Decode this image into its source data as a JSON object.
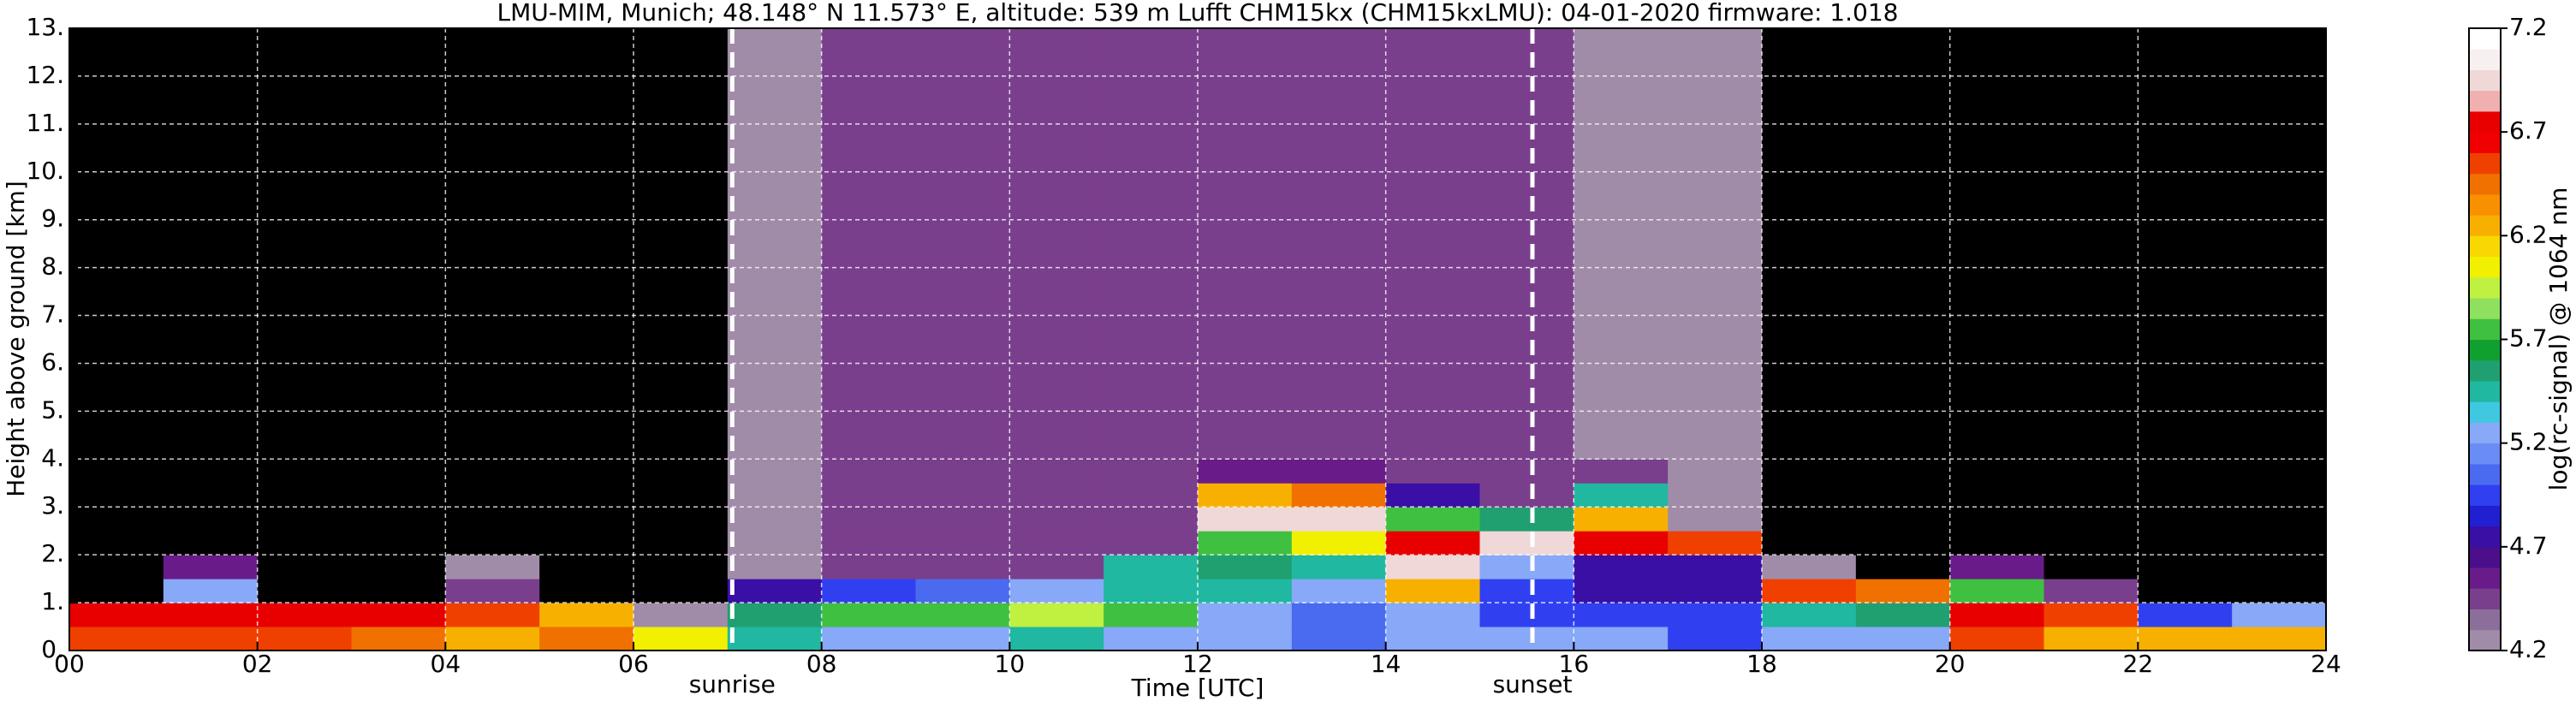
{
  "chart_data": {
    "type": "heatmap",
    "title": "LMU-MIM, Munich; 48.148° N 11.573° E, altitude: 539 m    Lufft CHM15kx (CHM15kxLMU): 04-01-2020    firmware: 1.018",
    "xlabel": "Time [UTC]",
    "ylabel": "Height above ground [km]",
    "xlim": [
      0,
      24
    ],
    "ylim": [
      0,
      13
    ],
    "xticks": [
      {
        "value": 0,
        "label": "00"
      },
      {
        "value": 2,
        "label": "02"
      },
      {
        "value": 4,
        "label": "04"
      },
      {
        "value": 6,
        "label": "06"
      },
      {
        "value": 8,
        "label": "08"
      },
      10,
      12,
      14,
      16,
      18,
      20,
      22,
      24
    ],
    "yticks": [
      {
        "value": 0,
        "label": "0."
      },
      {
        "value": 1,
        "label": "1."
      },
      {
        "value": 2,
        "label": "2."
      },
      {
        "value": 3,
        "label": "3."
      },
      {
        "value": 4,
        "label": "4."
      },
      {
        "value": 5,
        "label": "5."
      },
      {
        "value": 6,
        "label": "6."
      },
      {
        "value": 7,
        "label": "7."
      },
      {
        "value": 8,
        "label": "8."
      },
      {
        "value": 9,
        "label": "9."
      },
      {
        "value": 10,
        "label": "10."
      },
      {
        "value": 11,
        "label": "11."
      },
      {
        "value": 12,
        "label": "12."
      },
      {
        "value": 13,
        "label": "13."
      }
    ],
    "grid": true,
    "xbins": [
      0,
      1,
      2,
      3,
      4,
      5,
      6,
      7,
      8,
      9,
      10,
      11,
      12,
      13,
      14,
      15,
      16,
      17,
      18,
      19,
      20,
      21,
      22,
      23,
      24
    ],
    "ybins": [
      0,
      0.5,
      1,
      1.5,
      2,
      2.5,
      3,
      3.5,
      4,
      13
    ],
    "values": [
      [
        6.5,
        6.8,
        4.1,
        4.0,
        4.0,
        4.0,
        4.0,
        4.0,
        4.0
      ],
      [
        6.6,
        6.7,
        5.2,
        4.6,
        4.1,
        4.0,
        4.0,
        4.0,
        4.0
      ],
      [
        6.5,
        6.8,
        4.1,
        4.0,
        4.0,
        4.0,
        4.0,
        4.0,
        4.0
      ],
      [
        6.4,
        6.7,
        4.0,
        4.0,
        4.0,
        4.0,
        4.0,
        4.0,
        4.0
      ],
      [
        6.3,
        6.6,
        4.5,
        4.2,
        4.0,
        4.0,
        4.0,
        4.0,
        4.0
      ],
      [
        6.4,
        6.2,
        4.0,
        4.0,
        4.0,
        4.0,
        4.0,
        4.0,
        4.0
      ],
      [
        6.1,
        4.3,
        4.0,
        4.0,
        4.0,
        4.0,
        4.0,
        4.0,
        4.0
      ],
      [
        5.4,
        5.6,
        4.8,
        4.3,
        4.3,
        4.3,
        4.3,
        4.3,
        4.3
      ],
      [
        5.3,
        5.7,
        5.0,
        4.4,
        4.4,
        4.4,
        4.4,
        4.4,
        4.4
      ],
      [
        5.3,
        5.8,
        5.1,
        4.4,
        4.4,
        4.4,
        4.4,
        4.4,
        4.4
      ],
      [
        5.4,
        5.9,
        5.3,
        4.5,
        4.4,
        4.4,
        4.4,
        4.4,
        4.4
      ],
      [
        5.3,
        5.8,
        5.5,
        5.4,
        4.5,
        4.4,
        4.4,
        4.4,
        4.5
      ],
      [
        5.2,
        5.3,
        5.4,
        5.6,
        5.7,
        6.9,
        6.2,
        4.6,
        4.5
      ],
      [
        5.1,
        5.1,
        5.2,
        5.4,
        6.0,
        6.9,
        6.4,
        4.6,
        4.5
      ],
      [
        5.3,
        5.2,
        6.2,
        6.9,
        6.7,
        5.8,
        4.7,
        4.5,
        4.5
      ],
      [
        5.3,
        5.0,
        4.9,
        5.2,
        6.9,
        5.6,
        4.5,
        4.4,
        4.4
      ],
      [
        5.2,
        4.9,
        4.8,
        4.8,
        6.8,
        6.3,
        5.4,
        4.5,
        4.3
      ],
      [
        5.0,
        4.9,
        4.8,
        4.7,
        6.6,
        4.3,
        4.2,
        4.2,
        4.2
      ],
      [
        5.2,
        5.5,
        6.5,
        4.2,
        4.0,
        4.0,
        4.0,
        4.0,
        4.0
      ],
      [
        5.2,
        5.6,
        6.4,
        4.1,
        4.0,
        4.0,
        4.0,
        4.0,
        4.0
      ],
      [
        6.5,
        6.8,
        5.8,
        4.6,
        4.0,
        4.0,
        4.0,
        4.0,
        4.0
      ],
      [
        6.3,
        6.6,
        4.4,
        4.0,
        4.0,
        4.0,
        4.0,
        4.0,
        4.0
      ],
      [
        6.2,
        5.0,
        4.0,
        4.0,
        4.0,
        4.0,
        4.0,
        4.0,
        4.0
      ],
      [
        6.3,
        5.2,
        4.1,
        4.0,
        4.0,
        4.0,
        4.0,
        4.0,
        4.0
      ]
    ],
    "annotations": [
      {
        "x": 7.05,
        "label": "sunrise"
      },
      {
        "x": 15.56,
        "label": "sunset"
      }
    ],
    "colorbar": {
      "label": "log(rc-signal) @ 1064 nm",
      "clim": [
        4.2,
        7.2
      ],
      "ticks": [
        4.2,
        4.7,
        5.2,
        5.7,
        6.2,
        6.7,
        7.2
      ],
      "under_color": "#000000",
      "colors": [
        "#a08ca8",
        "#8c6e9a",
        "#7a3f8c",
        "#6a1b8a",
        "#4b0f8c",
        "#3a0fa6",
        "#2020d0",
        "#3040f0",
        "#4a6af0",
        "#6a8cf5",
        "#88a8f8",
        "#40c8e0",
        "#20b8a0",
        "#20a070",
        "#10a030",
        "#40c040",
        "#90e060",
        "#c0f040",
        "#f0f000",
        "#f8d800",
        "#f8b000",
        "#f89000",
        "#f07000",
        "#f04000",
        "#f00000",
        "#e80000",
        "#f0b0b0",
        "#f0d8d8",
        "#f8f0f0",
        "#ffffff"
      ]
    }
  }
}
